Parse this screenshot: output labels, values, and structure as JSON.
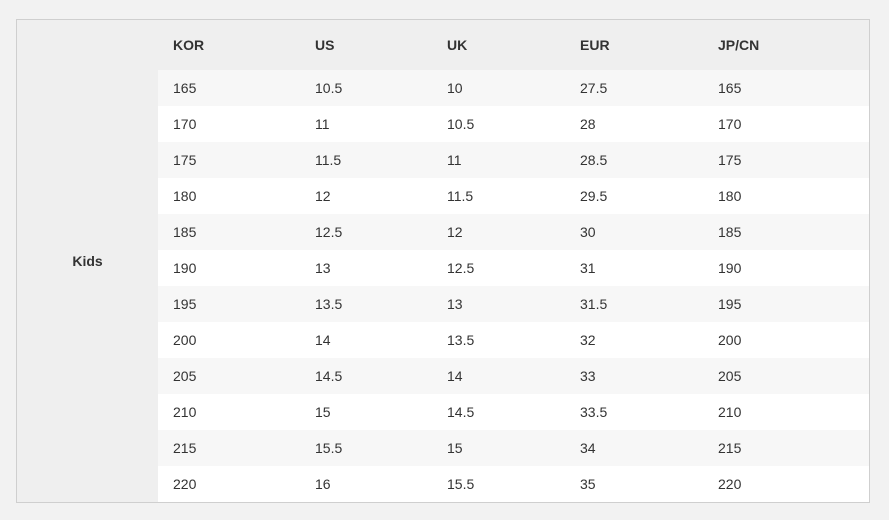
{
  "table": {
    "group_label": "Kids",
    "columns": [
      "KOR",
      "US",
      "UK",
      "EUR",
      "JP/CN"
    ],
    "rows": [
      [
        "165",
        "10.5",
        "10",
        "27.5",
        "165"
      ],
      [
        "170",
        "11",
        "10.5",
        "28",
        "170"
      ],
      [
        "175",
        "11.5",
        "11",
        "28.5",
        "175"
      ],
      [
        "180",
        "12",
        "11.5",
        "29.5",
        "180"
      ],
      [
        "185",
        "12.5",
        "12",
        "30",
        "185"
      ],
      [
        "190",
        "13",
        "12.5",
        "31",
        "190"
      ],
      [
        "195",
        "13.5",
        "13",
        "31.5",
        "195"
      ],
      [
        "200",
        "14",
        "13.5",
        "32",
        "200"
      ],
      [
        "205",
        "14.5",
        "14",
        "33",
        "205"
      ],
      [
        "210",
        "15",
        "14.5",
        "33.5",
        "210"
      ],
      [
        "215",
        "15.5",
        "15",
        "34",
        "215"
      ],
      [
        "220",
        "16",
        "15.5",
        "35",
        "220"
      ]
    ]
  }
}
